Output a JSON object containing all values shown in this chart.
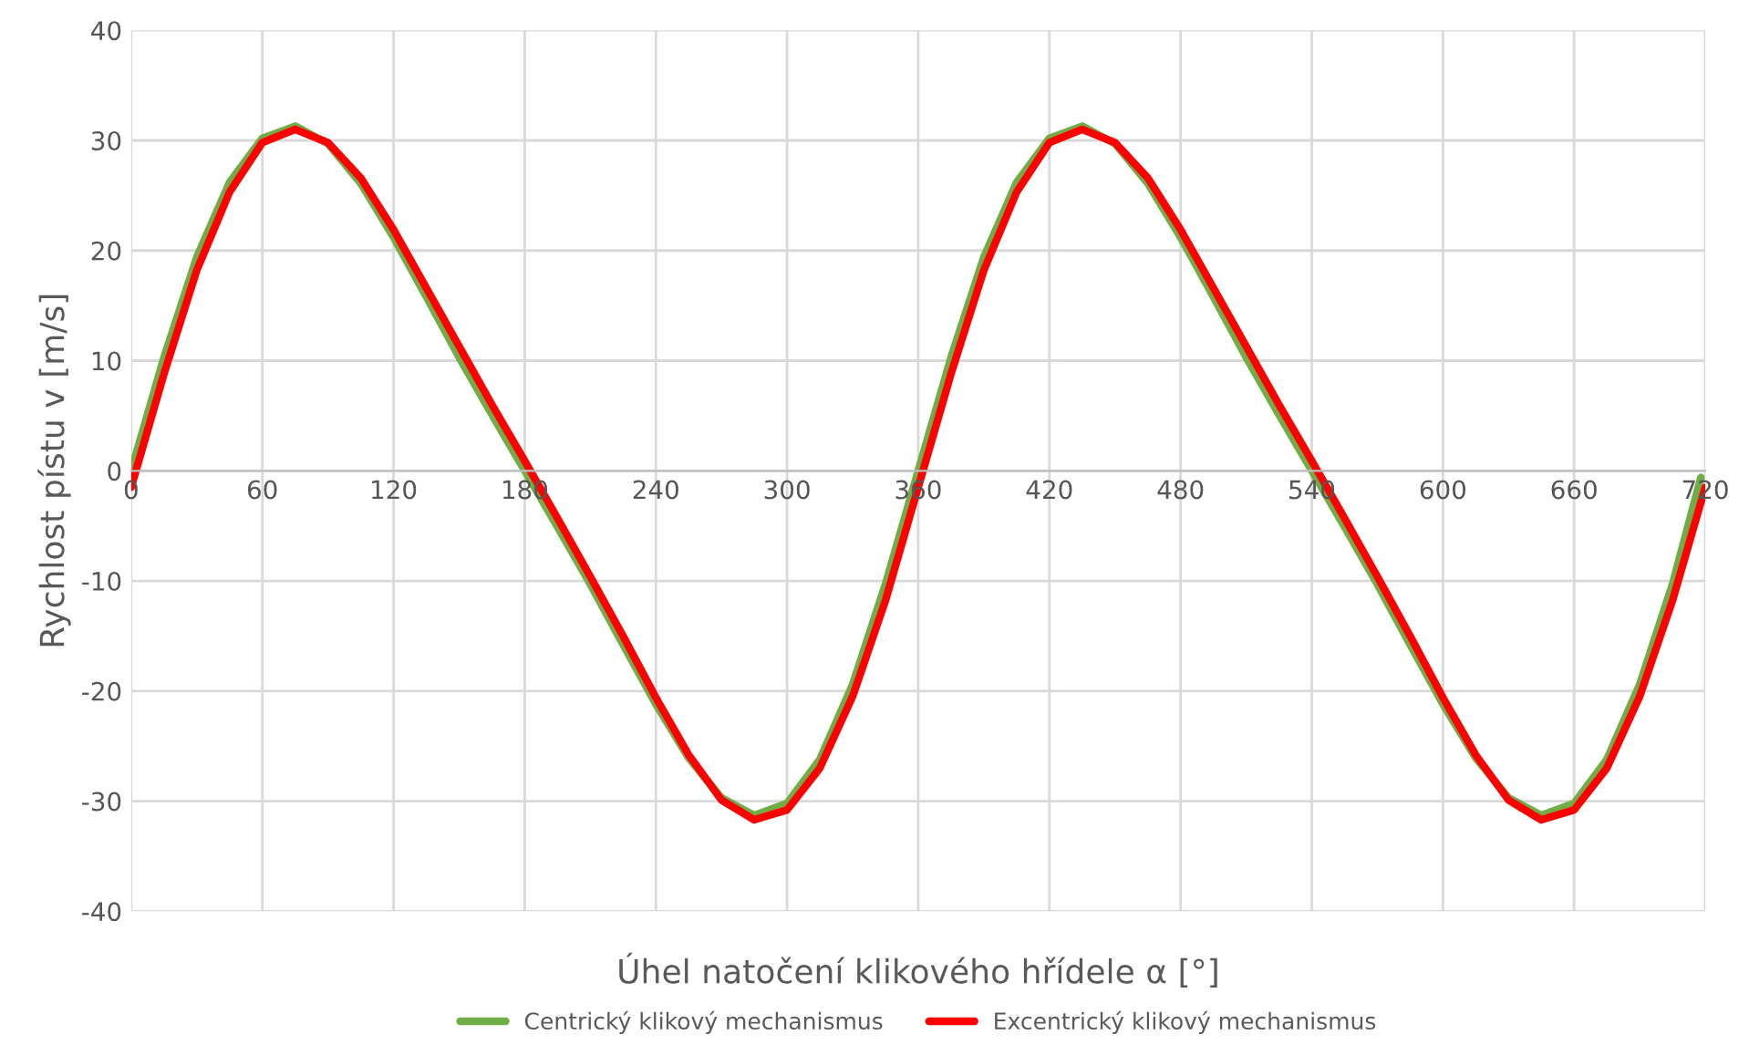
{
  "chart_data": {
    "type": "line",
    "xlabel": "Úhel natočení klikového hřídele α [°]",
    "ylabel": "Rychlost pístu v [m/s]",
    "xlim": [
      0,
      720
    ],
    "ylim": [
      -40,
      40
    ],
    "xticks": [
      0,
      60,
      120,
      180,
      240,
      300,
      360,
      420,
      480,
      540,
      600,
      660,
      720
    ],
    "yticks": [
      -40,
      -30,
      -20,
      -10,
      0,
      10,
      20,
      30,
      40
    ],
    "grid": true,
    "legend": "bottom",
    "marker": "none",
    "line_style": "solid",
    "series": [
      {
        "name": "Centrický klikový mechanismus",
        "color": "#70ad47",
        "x": [
          0,
          15,
          30,
          45,
          60,
          75,
          90,
          105,
          120,
          135,
          150,
          165,
          180,
          195,
          210,
          225,
          240,
          255,
          270,
          285,
          300,
          315,
          330,
          345,
          360,
          375,
          390,
          405,
          420,
          435,
          450,
          465,
          480,
          495,
          510,
          525,
          540,
          555,
          570,
          585,
          600,
          615,
          630,
          645,
          660,
          675,
          690,
          705,
          718
        ],
        "values": [
          0,
          10.3,
          19.4,
          26.2,
          30.2,
          31.3,
          29.7,
          26.1,
          21.2,
          15.8,
          10.3,
          5.1,
          0,
          -5.1,
          -10.3,
          -15.8,
          -21.2,
          -26.1,
          -29.7,
          -31.3,
          -30.2,
          -26.2,
          -19.4,
          -10.3,
          0,
          10.3,
          19.4,
          26.2,
          30.2,
          31.3,
          29.7,
          26.1,
          21.2,
          15.8,
          10.3,
          5.1,
          0,
          -5.1,
          -10.3,
          -15.8,
          -21.2,
          -26.1,
          -29.7,
          -31.3,
          -30.2,
          -26.2,
          -19.4,
          -10.3,
          -0.6
        ]
      },
      {
        "name": "Excentrický klikový mechanismus",
        "color": "#ff0000",
        "x": [
          0,
          15,
          30,
          45,
          60,
          75,
          90,
          105,
          120,
          135,
          150,
          165,
          180,
          195,
          210,
          225,
          240,
          255,
          270,
          285,
          300,
          315,
          330,
          345,
          360,
          375,
          390,
          405,
          420,
          435,
          450,
          465,
          480,
          495,
          510,
          525,
          540,
          555,
          570,
          585,
          600,
          615,
          630,
          645,
          660,
          675,
          690,
          705,
          720
        ],
        "values": [
          -1.5,
          8.8,
          18.2,
          25.3,
          29.8,
          31.0,
          29.8,
          26.6,
          21.9,
          16.6,
          11.3,
          6.0,
          0.9,
          -4.3,
          -9.6,
          -15.0,
          -20.6,
          -25.8,
          -29.9,
          -31.7,
          -30.8,
          -27.0,
          -20.5,
          -11.8,
          -1.5,
          8.8,
          18.2,
          25.3,
          29.8,
          31.0,
          29.8,
          26.6,
          21.9,
          16.6,
          11.3,
          6.0,
          0.9,
          -4.3,
          -9.6,
          -15.0,
          -20.6,
          -25.8,
          -29.9,
          -31.7,
          -30.8,
          -27.0,
          -20.5,
          -11.8,
          -1.5
        ]
      }
    ]
  }
}
